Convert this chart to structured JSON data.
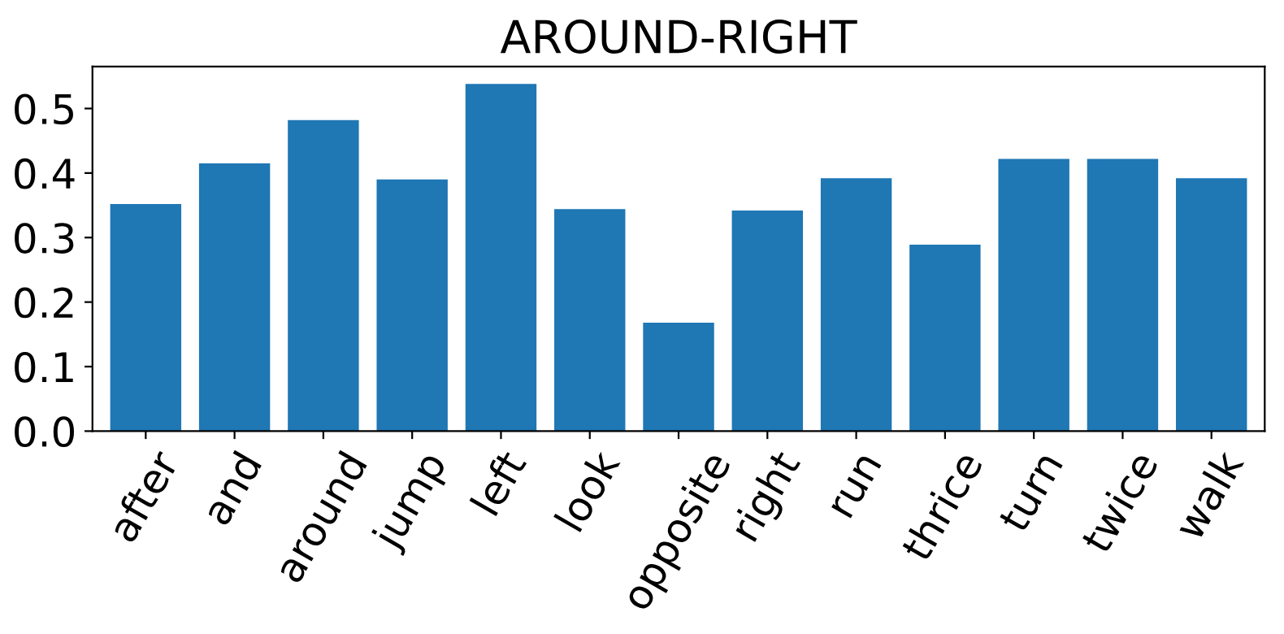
{
  "chart_data": {
    "type": "bar",
    "title": "AROUND-RIGHT",
    "categories": [
      "after",
      "and",
      "around",
      "jump",
      "left",
      "look",
      "opposite",
      "right",
      "run",
      "thrice",
      "turn",
      "twice",
      "walk"
    ],
    "values": [
      0.352,
      0.415,
      0.482,
      0.39,
      0.538,
      0.344,
      0.168,
      0.342,
      0.392,
      0.289,
      0.422,
      0.422,
      0.392
    ],
    "color": "#1f77b4",
    "ylim": [
      0,
      0.565
    ],
    "yticks": [
      {
        "value": 0,
        "label": "0.0"
      },
      0.1,
      0.2,
      0.3,
      0.4,
      0.5
    ],
    "grid": false
  }
}
